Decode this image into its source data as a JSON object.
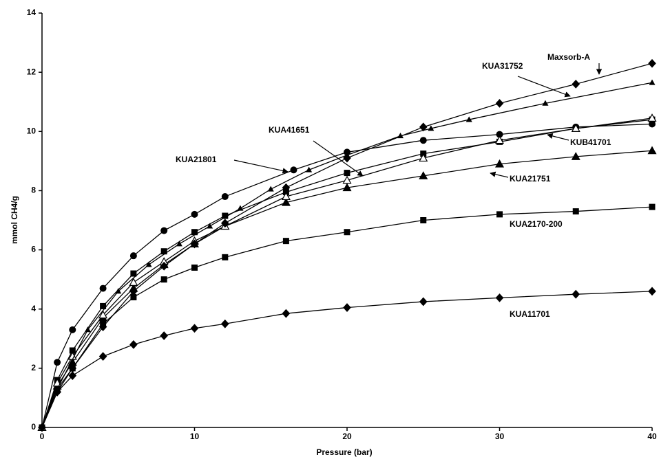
{
  "chart_data": {
    "type": "line",
    "xlabel": "Pressure (bar)",
    "ylabel": "mmol CH4/g",
    "xlim": [
      0,
      40
    ],
    "xticks": [
      0,
      10,
      20,
      30,
      40
    ],
    "ylim": [
      0,
      14
    ],
    "yticks": [
      0,
      2,
      4,
      6,
      8,
      10,
      12,
      14
    ],
    "series": [
      {
        "name": "KUA11701",
        "color": "#000000",
        "marker": "diamond",
        "x": [
          0,
          1,
          2,
          4,
          6,
          8,
          10,
          12,
          16,
          20,
          25,
          30,
          35,
          40
        ],
        "values": [
          0,
          1.2,
          1.75,
          2.4,
          2.8,
          3.1,
          3.35,
          3.5,
          3.85,
          4.05,
          4.25,
          4.38,
          4.5,
          4.6
        ]
      },
      {
        "name": "KUA2170-200",
        "color": "#000000",
        "marker": "square",
        "x": [
          0,
          1,
          2,
          4,
          6,
          8,
          10,
          12,
          16,
          20,
          25,
          30,
          35,
          40
        ],
        "values": [
          0,
          1.3,
          2.0,
          3.5,
          4.4,
          5.0,
          5.4,
          5.75,
          6.3,
          6.6,
          7.0,
          7.2,
          7.3,
          7.45
        ]
      },
      {
        "name": "KUA21751",
        "color": "#000000",
        "marker": "triangle",
        "x": [
          0,
          1,
          2,
          4,
          6,
          8,
          10,
          12,
          16,
          20,
          25,
          30,
          35,
          40
        ],
        "values": [
          0,
          1.4,
          2.2,
          3.7,
          4.7,
          5.5,
          6.2,
          6.8,
          7.6,
          8.1,
          8.5,
          8.9,
          9.15,
          9.35
        ]
      },
      {
        "name": "KUA21801",
        "color": "#000000",
        "marker": "circle",
        "x": [
          0,
          1,
          2,
          4,
          6,
          8,
          10,
          12,
          16.5,
          20,
          25,
          30,
          35,
          40
        ],
        "values": [
          0,
          2.2,
          3.3,
          4.7,
          5.8,
          6.65,
          7.2,
          7.8,
          8.7,
          9.3,
          9.7,
          9.9,
          10.15,
          10.25
        ]
      },
      {
        "name": "KUB41701",
        "color": "#000000",
        "marker": "square",
        "x": [
          0,
          1,
          2,
          4,
          6,
          8,
          10,
          12,
          16,
          20,
          25,
          30,
          35,
          40
        ],
        "values": [
          0,
          1.6,
          2.6,
          4.1,
          5.2,
          5.95,
          6.6,
          7.15,
          7.95,
          8.6,
          9.25,
          9.65,
          10.1,
          10.4
        ]
      },
      {
        "name": "KUA41651",
        "color": "#000000",
        "marker": "open-triangle",
        "x": [
          0,
          1,
          2,
          4,
          6,
          8,
          10,
          12,
          16,
          20,
          25,
          30,
          35,
          40
        ],
        "values": [
          0,
          1.5,
          2.4,
          3.8,
          4.9,
          5.6,
          6.3,
          6.8,
          7.8,
          8.35,
          9.1,
          9.7,
          10.1,
          10.45
        ]
      },
      {
        "name": "Maxsorb-A",
        "color": "#000000",
        "marker": "diamond",
        "x": [
          0,
          1,
          2,
          4,
          6,
          8,
          10,
          12,
          16,
          20,
          25,
          30,
          35,
          40
        ],
        "values": [
          0,
          1.2,
          2.0,
          3.4,
          4.6,
          5.45,
          6.2,
          6.9,
          8.1,
          9.1,
          10.15,
          10.95,
          11.6,
          12.3
        ]
      },
      {
        "name": "KUA31752",
        "color": "#000000",
        "marker": "small-triangle",
        "x": [
          0,
          1,
          3,
          5,
          7,
          9,
          11,
          13,
          15,
          17.5,
          20,
          23.5,
          25.5,
          28,
          33,
          40
        ],
        "values": [
          0,
          1.3,
          3.3,
          4.6,
          5.5,
          6.2,
          6.8,
          7.4,
          8.05,
          8.7,
          9.2,
          9.85,
          10.1,
          10.4,
          10.95,
          11.65
        ]
      }
    ],
    "annotations": [
      "Maxsorb-A",
      "KUA31752",
      "KUA41651",
      "KUA21801",
      "KUB41701",
      "KUA21751",
      "KUA2170-200",
      "KUA11701"
    ]
  }
}
